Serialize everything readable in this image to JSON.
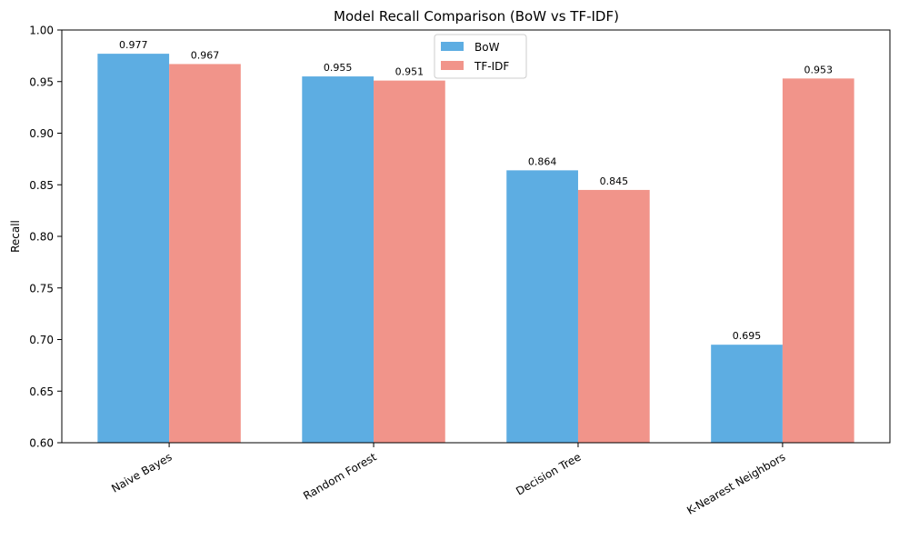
{
  "chart_data": {
    "type": "bar",
    "title": "Model Recall Comparison (BoW vs TF-IDF)",
    "xlabel": "",
    "ylabel": "Recall",
    "ylim": [
      0.6,
      1.0
    ],
    "yticks": [
      0.6,
      0.65,
      0.7,
      0.75,
      0.8,
      0.85,
      0.9,
      0.95,
      1.0
    ],
    "ytick_labels": [
      "0.60",
      "0.65",
      "0.70",
      "0.75",
      "0.80",
      "0.85",
      "0.90",
      "0.95",
      "1.00"
    ],
    "categories": [
      "Naive Bayes",
      "Random Forest",
      "Decision Tree",
      "K-Nearest Neighbors"
    ],
    "series": [
      {
        "name": "BoW",
        "color": "#5DADE2",
        "values": [
          0.977,
          0.955,
          0.864,
          0.695
        ],
        "labels": [
          "0.977",
          "0.955",
          "0.864",
          "0.695"
        ]
      },
      {
        "name": "TF-IDF",
        "color": "#F1948A",
        "values": [
          0.967,
          0.951,
          0.845,
          0.953
        ],
        "labels": [
          "0.967",
          "0.951",
          "0.845",
          "0.953"
        ]
      }
    ],
    "grid": false,
    "legend_position": "top-center"
  }
}
